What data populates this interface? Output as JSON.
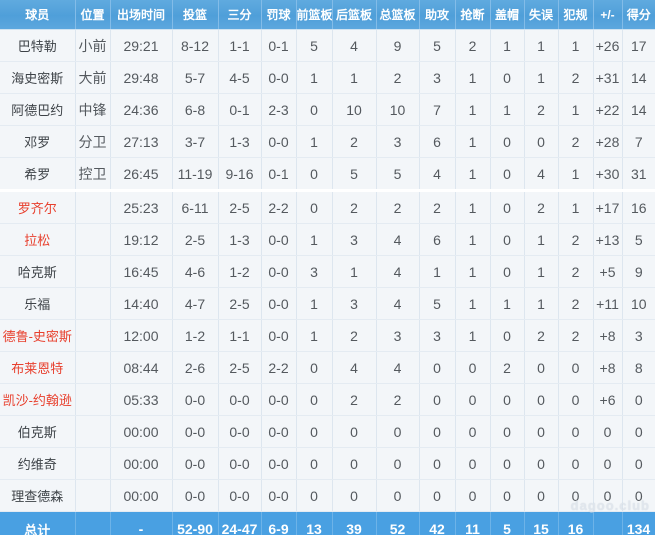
{
  "table": {
    "columns": [
      "球员",
      "位置",
      "出场时间",
      "投篮",
      "三分",
      "罚球",
      "前篮板",
      "后篮板",
      "总篮板",
      "助攻",
      "抢断",
      "盖帽",
      "失误",
      "犯规",
      "+/-",
      "得分"
    ],
    "starters_count": 5,
    "rows": [
      {
        "name": "巴特勒",
        "red": false,
        "pos": "小前",
        "time": "29:21",
        "fg": "8-12",
        "tp": "1-1",
        "ft": "0-1",
        "orb": "5",
        "drb": "4",
        "trb": "9",
        "ast": "5",
        "stl": "2",
        "blk": "1",
        "tov": "1",
        "pf": "1",
        "pm": "+26",
        "pts": "17"
      },
      {
        "name": "海史密斯",
        "red": false,
        "pos": "大前",
        "time": "29:48",
        "fg": "5-7",
        "tp": "4-5",
        "ft": "0-0",
        "orb": "1",
        "drb": "1",
        "trb": "2",
        "ast": "3",
        "stl": "1",
        "blk": "0",
        "tov": "1",
        "pf": "2",
        "pm": "+31",
        "pts": "14"
      },
      {
        "name": "阿德巴约",
        "red": false,
        "pos": "中锋",
        "time": "24:36",
        "fg": "6-8",
        "tp": "0-1",
        "ft": "2-3",
        "orb": "0",
        "drb": "10",
        "trb": "10",
        "ast": "7",
        "stl": "1",
        "blk": "1",
        "tov": "2",
        "pf": "1",
        "pm": "+22",
        "pts": "14"
      },
      {
        "name": "邓罗",
        "red": false,
        "pos": "分卫",
        "time": "27:13",
        "fg": "3-7",
        "tp": "1-3",
        "ft": "0-0",
        "orb": "1",
        "drb": "2",
        "trb": "3",
        "ast": "6",
        "stl": "1",
        "blk": "0",
        "tov": "0",
        "pf": "2",
        "pm": "+28",
        "pts": "7"
      },
      {
        "name": "希罗",
        "red": false,
        "pos": "控卫",
        "time": "26:45",
        "fg": "11-19",
        "tp": "9-16",
        "ft": "0-1",
        "orb": "0",
        "drb": "5",
        "trb": "5",
        "ast": "4",
        "stl": "1",
        "blk": "0",
        "tov": "4",
        "pf": "1",
        "pm": "+30",
        "pts": "31"
      },
      {
        "name": "罗齐尔",
        "red": true,
        "pos": "",
        "time": "25:23",
        "fg": "6-11",
        "tp": "2-5",
        "ft": "2-2",
        "orb": "0",
        "drb": "2",
        "trb": "2",
        "ast": "2",
        "stl": "1",
        "blk": "0",
        "tov": "2",
        "pf": "1",
        "pm": "+17",
        "pts": "16"
      },
      {
        "name": "拉松",
        "red": true,
        "pos": "",
        "time": "19:12",
        "fg": "2-5",
        "tp": "1-3",
        "ft": "0-0",
        "orb": "1",
        "drb": "3",
        "trb": "4",
        "ast": "6",
        "stl": "1",
        "blk": "0",
        "tov": "1",
        "pf": "2",
        "pm": "+13",
        "pts": "5"
      },
      {
        "name": "哈克斯",
        "red": false,
        "pos": "",
        "time": "16:45",
        "fg": "4-6",
        "tp": "1-2",
        "ft": "0-0",
        "orb": "3",
        "drb": "1",
        "trb": "4",
        "ast": "1",
        "stl": "1",
        "blk": "0",
        "tov": "1",
        "pf": "2",
        "pm": "+5",
        "pts": "9"
      },
      {
        "name": "乐福",
        "red": false,
        "pos": "",
        "time": "14:40",
        "fg": "4-7",
        "tp": "2-5",
        "ft": "0-0",
        "orb": "1",
        "drb": "3",
        "trb": "4",
        "ast": "5",
        "stl": "1",
        "blk": "1",
        "tov": "1",
        "pf": "2",
        "pm": "+11",
        "pts": "10"
      },
      {
        "name": "德鲁-史密斯",
        "red": true,
        "pos": "",
        "time": "12:00",
        "fg": "1-2",
        "tp": "1-1",
        "ft": "0-0",
        "orb": "1",
        "drb": "2",
        "trb": "3",
        "ast": "3",
        "stl": "1",
        "blk": "0",
        "tov": "2",
        "pf": "2",
        "pm": "+8",
        "pts": "3"
      },
      {
        "name": "布莱恩特",
        "red": true,
        "pos": "",
        "time": "08:44",
        "fg": "2-6",
        "tp": "2-5",
        "ft": "2-2",
        "orb": "0",
        "drb": "4",
        "trb": "4",
        "ast": "0",
        "stl": "0",
        "blk": "2",
        "tov": "0",
        "pf": "0",
        "pm": "+8",
        "pts": "8"
      },
      {
        "name": "凯沙-约翰逊",
        "red": true,
        "pos": "",
        "time": "05:33",
        "fg": "0-0",
        "tp": "0-0",
        "ft": "0-0",
        "orb": "0",
        "drb": "2",
        "trb": "2",
        "ast": "0",
        "stl": "0",
        "blk": "0",
        "tov": "0",
        "pf": "0",
        "pm": "+6",
        "pts": "0"
      },
      {
        "name": "伯克斯",
        "red": false,
        "pos": "",
        "time": "00:00",
        "fg": "0-0",
        "tp": "0-0",
        "ft": "0-0",
        "orb": "0",
        "drb": "0",
        "trb": "0",
        "ast": "0",
        "stl": "0",
        "blk": "0",
        "tov": "0",
        "pf": "0",
        "pm": "0",
        "pts": "0"
      },
      {
        "name": "约维奇",
        "red": false,
        "pos": "",
        "time": "00:00",
        "fg": "0-0",
        "tp": "0-0",
        "ft": "0-0",
        "orb": "0",
        "drb": "0",
        "trb": "0",
        "ast": "0",
        "stl": "0",
        "blk": "0",
        "tov": "0",
        "pf": "0",
        "pm": "0",
        "pts": "0"
      },
      {
        "name": "理查德森",
        "red": false,
        "pos": "",
        "time": "00:00",
        "fg": "0-0",
        "tp": "0-0",
        "ft": "0-0",
        "orb": "0",
        "drb": "0",
        "trb": "0",
        "ast": "0",
        "stl": "0",
        "blk": "0",
        "tov": "0",
        "pf": "0",
        "pm": "0",
        "pts": "0"
      }
    ],
    "totals": {
      "name": "总计",
      "red": false,
      "pos": "",
      "time": "-",
      "fg": "52-90",
      "tp": "24-47",
      "ft": "6-9",
      "orb": "13",
      "drb": "39",
      "trb": "52",
      "ast": "42",
      "stl": "11",
      "blk": "5",
      "tov": "15",
      "pf": "16",
      "pm": "",
      "pts": "134"
    }
  },
  "watermark": "dagoo.club",
  "colors": {
    "header_bg": "#54a3db",
    "header_text": "#ffffff",
    "totals_bg": "#49a0e2",
    "row_bg": "#f3f6f9",
    "cell_border": "#dde6ef",
    "stat_text": "#54595e",
    "name_black": "#3d4247",
    "name_red": "#e8402e"
  }
}
